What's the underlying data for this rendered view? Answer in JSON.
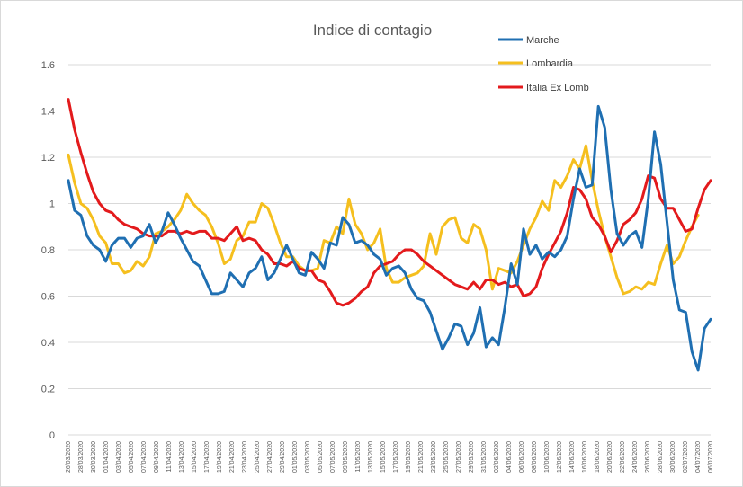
{
  "chart_data": {
    "type": "line",
    "title": "Indice di contagio",
    "xlabel": "",
    "ylabel": "",
    "ylim": [
      0,
      1.6
    ],
    "y_ticks": [
      "0",
      "0.2",
      "0.4",
      "0.6",
      "0.8",
      "1",
      "1.2",
      "1.4",
      "1.6"
    ],
    "grid": "horizontal",
    "legend_position": "top-right",
    "x_tick_labels": [
      "26/03/2020",
      "28/03/2020",
      "30/03/2020",
      "01/04/2020",
      "03/04/2020",
      "05/04/2020",
      "07/04/2020",
      "09/04/2020",
      "11/04/2020",
      "13/04/2020",
      "15/04/2020",
      "17/04/2020",
      "19/04/2020",
      "21/04/2020",
      "23/04/2020",
      "25/04/2020",
      "27/04/2020",
      "29/04/2020",
      "01/05/2020",
      "03/05/2020",
      "05/05/2020",
      "07/05/2020",
      "09/05/2020",
      "11/05/2020",
      "13/05/2020",
      "15/05/2020",
      "17/05/2020",
      "19/05/2020",
      "21/05/2020",
      "23/05/2020",
      "25/05/2020",
      "27/05/2020",
      "29/05/2020",
      "31/05/2020",
      "02/06/2020",
      "04/06/2020",
      "06/06/2020",
      "08/06/2020",
      "10/06/2020",
      "12/06/2020",
      "14/06/2020",
      "16/06/2020",
      "18/06/2020",
      "20/06/2020",
      "22/06/2020",
      "24/06/2020",
      "26/06/2020",
      "28/06/2020",
      "30/06/2020",
      "02/07/2020",
      "04/07/2020",
      "06/07/2020"
    ],
    "series": [
      {
        "name": "Marche",
        "color": "#1f6fb2",
        "values": [
          1.1,
          0.97,
          0.95,
          0.86,
          0.82,
          0.8,
          0.75,
          0.82,
          0.85,
          0.85,
          0.81,
          0.85,
          0.86,
          0.91,
          0.83,
          0.88,
          0.96,
          0.91,
          0.85,
          0.8,
          0.75,
          0.73,
          0.67,
          0.61,
          0.61,
          0.62,
          0.7,
          0.67,
          0.64,
          0.7,
          0.72,
          0.77,
          0.67,
          0.7,
          0.76,
          0.82,
          0.76,
          0.7,
          0.69,
          0.79,
          0.76,
          0.72,
          0.83,
          0.82,
          0.94,
          0.91,
          0.83,
          0.84,
          0.82,
          0.78,
          0.76,
          0.69,
          0.72,
          0.73,
          0.7,
          0.63,
          0.59,
          0.58,
          0.53,
          0.45,
          0.37,
          0.42,
          0.48,
          0.47,
          0.39,
          0.44,
          0.55,
          0.38,
          0.42,
          0.39,
          0.55,
          0.74,
          0.65,
          0.89,
          0.78,
          0.82,
          0.76,
          0.79,
          0.77,
          0.8,
          0.86,
          1.02,
          1.15,
          1.07,
          1.08,
          1.42,
          1.33,
          1.06,
          0.87,
          0.82,
          0.86,
          0.88,
          0.81,
          1.02,
          1.31,
          1.17,
          0.92,
          0.67,
          0.54,
          0.53,
          0.36,
          0.28,
          0.46,
          0.5
        ]
      },
      {
        "name": "Lombardia",
        "color": "#f5bf1e",
        "values": [
          1.21,
          1.09,
          1.0,
          0.98,
          0.93,
          0.86,
          0.83,
          0.74,
          0.74,
          0.7,
          0.71,
          0.75,
          0.73,
          0.77,
          0.87,
          0.88,
          0.9,
          0.93,
          0.97,
          1.04,
          1.0,
          0.97,
          0.95,
          0.9,
          0.83,
          0.74,
          0.76,
          0.84,
          0.86,
          0.92,
          0.92,
          1.0,
          0.98,
          0.91,
          0.83,
          0.77,
          0.77,
          0.73,
          0.71,
          0.71,
          0.72,
          0.84,
          0.83,
          0.9,
          0.87,
          1.02,
          0.91,
          0.87,
          0.8,
          0.83,
          0.89,
          0.72,
          0.66,
          0.66,
          0.68,
          0.69,
          0.7,
          0.73,
          0.87,
          0.78,
          0.9,
          0.93,
          0.94,
          0.85,
          0.83,
          0.91,
          0.89,
          0.8,
          0.63,
          0.72,
          0.71,
          0.7,
          0.75,
          0.82,
          0.89,
          0.94,
          1.01,
          0.97,
          1.1,
          1.07,
          1.12,
          1.19,
          1.15,
          1.25,
          1.1,
          0.97,
          0.86,
          0.77,
          0.68,
          0.61,
          0.62,
          0.64,
          0.63,
          0.66,
          0.65,
          0.74,
          0.82,
          0.74,
          0.77,
          0.84,
          0.9,
          0.95
        ]
      },
      {
        "name": "Italia Ex Lomb",
        "color": "#e31a1c",
        "values": [
          1.45,
          1.32,
          1.22,
          1.13,
          1.05,
          1.0,
          0.97,
          0.96,
          0.93,
          0.91,
          0.9,
          0.89,
          0.87,
          0.86,
          0.86,
          0.86,
          0.88,
          0.88,
          0.87,
          0.88,
          0.87,
          0.88,
          0.88,
          0.85,
          0.85,
          0.84,
          0.87,
          0.9,
          0.84,
          0.85,
          0.84,
          0.8,
          0.78,
          0.74,
          0.74,
          0.73,
          0.75,
          0.72,
          0.71,
          0.71,
          0.67,
          0.66,
          0.62,
          0.57,
          0.56,
          0.57,
          0.59,
          0.62,
          0.64,
          0.7,
          0.73,
          0.74,
          0.75,
          0.78,
          0.8,
          0.8,
          0.78,
          0.75,
          0.73,
          0.71,
          0.69,
          0.67,
          0.65,
          0.64,
          0.63,
          0.66,
          0.63,
          0.67,
          0.67,
          0.65,
          0.66,
          0.64,
          0.65,
          0.6,
          0.61,
          0.64,
          0.72,
          0.78,
          0.83,
          0.88,
          0.96,
          1.07,
          1.06,
          1.02,
          0.94,
          0.91,
          0.86,
          0.79,
          0.84,
          0.91,
          0.93,
          0.96,
          1.02,
          1.12,
          1.11,
          1.02,
          0.98,
          0.98,
          0.93,
          0.88,
          0.89,
          0.98,
          1.06,
          1.1
        ]
      }
    ]
  }
}
